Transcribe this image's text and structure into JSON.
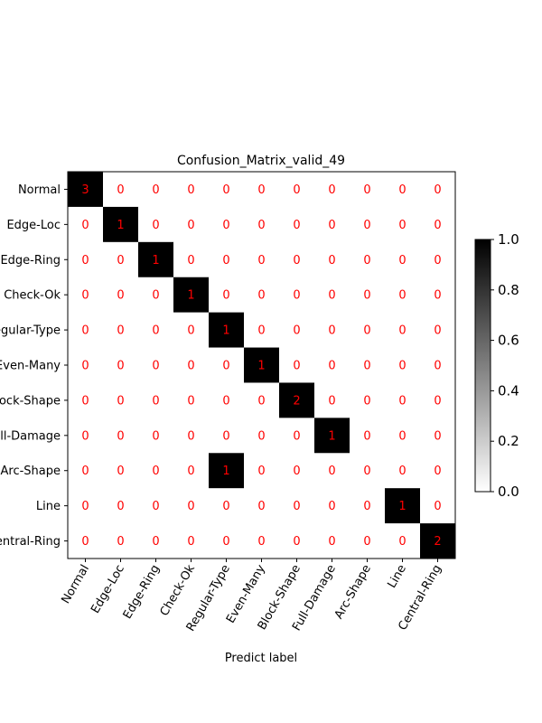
{
  "chart_data": {
    "type": "heatmap",
    "title": "Confusion_Matrix_valid_49",
    "xlabel": "Predict label",
    "ylabel": "",
    "row_labels": [
      "Normal",
      "Edge-Loc",
      "Edge-Ring",
      "Check-Ok",
      "Regular-Type",
      "Even-Many",
      "Block-Shape",
      "Full-Damage",
      "Arc-Shape",
      "Line",
      "Central-Ring"
    ],
    "col_labels": [
      "Normal",
      "Edge-Loc",
      "Edge-Ring",
      "Check-Ok",
      "Regular-Type",
      "Even-Many",
      "Block-Shape",
      "Full-Damage",
      "Arc-Shape",
      "Line",
      "Central-Ring"
    ],
    "values": [
      [
        3,
        0,
        0,
        0,
        0,
        0,
        0,
        0,
        0,
        0,
        0
      ],
      [
        0,
        1,
        0,
        0,
        0,
        0,
        0,
        0,
        0,
        0,
        0
      ],
      [
        0,
        0,
        1,
        0,
        0,
        0,
        0,
        0,
        0,
        0,
        0
      ],
      [
        0,
        0,
        0,
        1,
        0,
        0,
        0,
        0,
        0,
        0,
        0
      ],
      [
        0,
        0,
        0,
        0,
        1,
        0,
        0,
        0,
        0,
        0,
        0
      ],
      [
        0,
        0,
        0,
        0,
        0,
        1,
        0,
        0,
        0,
        0,
        0
      ],
      [
        0,
        0,
        0,
        0,
        0,
        0,
        2,
        0,
        0,
        0,
        0
      ],
      [
        0,
        0,
        0,
        0,
        0,
        0,
        0,
        1,
        0,
        0,
        0
      ],
      [
        0,
        0,
        0,
        0,
        1,
        0,
        0,
        0,
        0,
        0,
        0
      ],
      [
        0,
        0,
        0,
        0,
        0,
        0,
        0,
        0,
        0,
        1,
        0
      ],
      [
        0,
        0,
        0,
        0,
        0,
        0,
        0,
        0,
        0,
        0,
        2
      ]
    ],
    "color_scale": {
      "min": 0.0,
      "max": 1.0,
      "low_color": "#ffffff",
      "high_color": "#000000"
    },
    "colorbar_ticks": [
      "0.0",
      "0.2",
      "0.4",
      "0.6",
      "0.8",
      "1.0"
    ],
    "cell_text_color": "#ff0000",
    "grid": false
  }
}
